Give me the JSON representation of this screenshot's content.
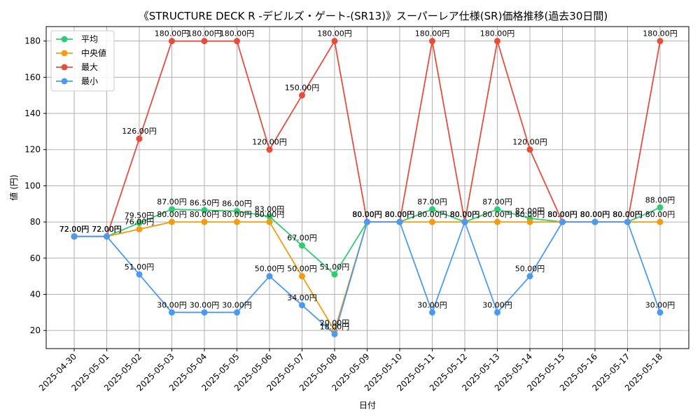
{
  "chart_data": {
    "type": "line",
    "title": "《STRUCTURE DECK R -デビルズ・ゲート-(SR13)》スーパーレア仕様(SR)価格推移(過去30日間)",
    "xlabel": "日付",
    "ylabel": "値 (円)",
    "ylim": [
      10,
      188
    ],
    "yticks": [
      20,
      40,
      60,
      80,
      100,
      120,
      140,
      160,
      180
    ],
    "grid": true,
    "legend_position": "top-left",
    "categories": [
      "2025-04-30",
      "2025-05-01",
      "2025-05-02",
      "2025-05-03",
      "2025-05-04",
      "2025-05-05",
      "2025-05-06",
      "2025-05-07",
      "2025-05-08",
      "2025-05-09",
      "2025-05-10",
      "2025-05-11",
      "2025-05-12",
      "2025-05-13",
      "2025-05-14",
      "2025-05-15",
      "2025-05-16",
      "2025-05-17",
      "2025-05-18"
    ],
    "series": [
      {
        "name": "平均",
        "color": "#2ecc71",
        "values": [
          72,
          72,
          79.5,
          87,
          86.5,
          86,
          83,
          67,
          51,
          80,
          80,
          87,
          80,
          87,
          82,
          80,
          80,
          80,
          88
        ],
        "labels": [
          "72.00円",
          "72.00円",
          "79.50円",
          "87.00円",
          "86.50円",
          "86.00円",
          "83.00円",
          "67.00円",
          "51.00円",
          "80.00円",
          "80.00円",
          "87.00円",
          "80.00円",
          "87.00円",
          "82.00円",
          "80.00円",
          "80.00円",
          "80.00円",
          "88.00円"
        ]
      },
      {
        "name": "中央値",
        "color": "#f39c12",
        "values": [
          72,
          72,
          76,
          80,
          80,
          80,
          80,
          50,
          20,
          80,
          80,
          80,
          80,
          80,
          80,
          80,
          80,
          80,
          80
        ],
        "labels": [
          "72.00円",
          "72.00円",
          "76.00円",
          "80.00円",
          "80.00円",
          "80.00円",
          "80.00円",
          "50.00円",
          "20.00円",
          "80.00円",
          "80.00円",
          "80.00円",
          "80.00円",
          "80.00円",
          "80.00円",
          "80.00円",
          "80.00円",
          "80.00円",
          "80.00円"
        ]
      },
      {
        "name": "最大",
        "color": "#e74c3c",
        "values": [
          72,
          72,
          126,
          180,
          180,
          180,
          120,
          150,
          180,
          80,
          80,
          180,
          80,
          180,
          120,
          80,
          80,
          80,
          180
        ],
        "labels": [
          "72.00円",
          "72.00円",
          "126.00円",
          "180.00円",
          "180.00円",
          "180.00円",
          "120.00円",
          "150.00円",
          "180.00円",
          "80.00円",
          "80.00円",
          "180.00円",
          "80.00円",
          "180.00円",
          "120.00円",
          "80.00円",
          "80.00円",
          "80.00円",
          "180.00円"
        ]
      },
      {
        "name": "最小",
        "color": "#4a9af5",
        "values": [
          72,
          72,
          51,
          30,
          30,
          30,
          50,
          34,
          18,
          80,
          80,
          30,
          80,
          30,
          50,
          80,
          80,
          80,
          30
        ],
        "labels": [
          "72.00円",
          "72.00円",
          "51.00円",
          "30.00円",
          "30.00円",
          "30.00円",
          "50.00円",
          "34.00円",
          "18.00円",
          "80.00円",
          "80.00円",
          "30.00円",
          "80.00円",
          "30.00円",
          "50.00円",
          "80.00円",
          "80.00円",
          "80.00円",
          "30.00円"
        ]
      }
    ]
  }
}
